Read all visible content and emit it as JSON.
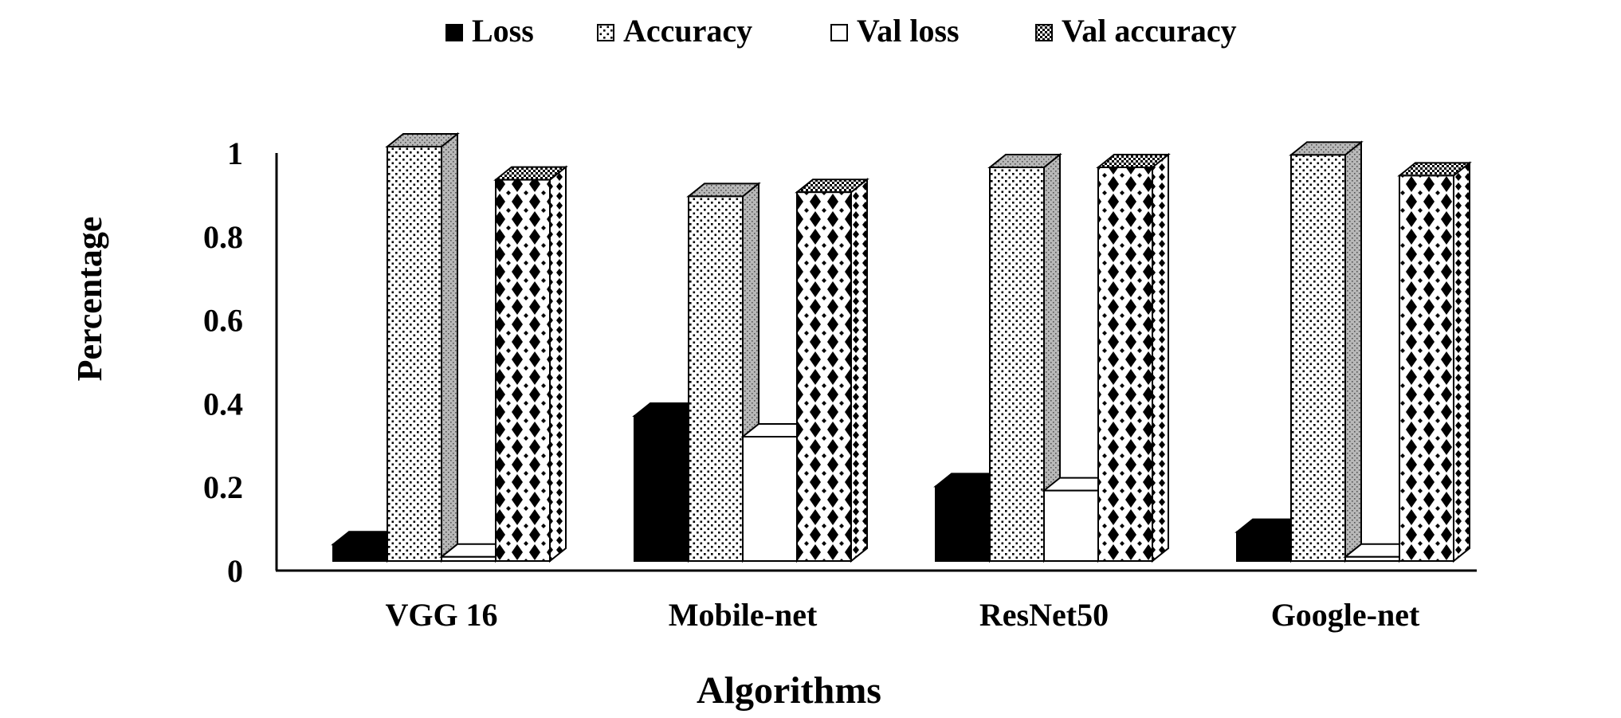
{
  "chart_data": {
    "type": "bar",
    "categories": [
      "VGG 16",
      "Mobile-net",
      "ResNet50",
      "Google-net"
    ],
    "series": [
      {
        "name": "Loss",
        "values": [
          0.04,
          0.35,
          0.18,
          0.07
        ],
        "pattern": "solid"
      },
      {
        "name": "Accuracy",
        "values": [
          1.0,
          0.88,
          0.95,
          0.98
        ],
        "pattern": "dots"
      },
      {
        "name": "Val loss",
        "values": [
          0.01,
          0.3,
          0.17,
          0.01
        ],
        "pattern": "none"
      },
      {
        "name": "Val accuracy",
        "values": [
          0.92,
          0.89,
          0.95,
          0.93
        ],
        "pattern": "diamonds"
      }
    ],
    "xlabel": "Algorithms",
    "ylabel": "Percentage",
    "ylim": [
      0,
      1
    ],
    "yticks": [
      "0",
      "0.2",
      "0.4",
      "0.6",
      "0.8",
      "1"
    ],
    "grid": false,
    "legend_position": "top",
    "colors": {
      "fill_dark": "#000000",
      "fill_light": "#ffffff",
      "side": "#b0b0b0",
      "axis": "#000000"
    }
  }
}
